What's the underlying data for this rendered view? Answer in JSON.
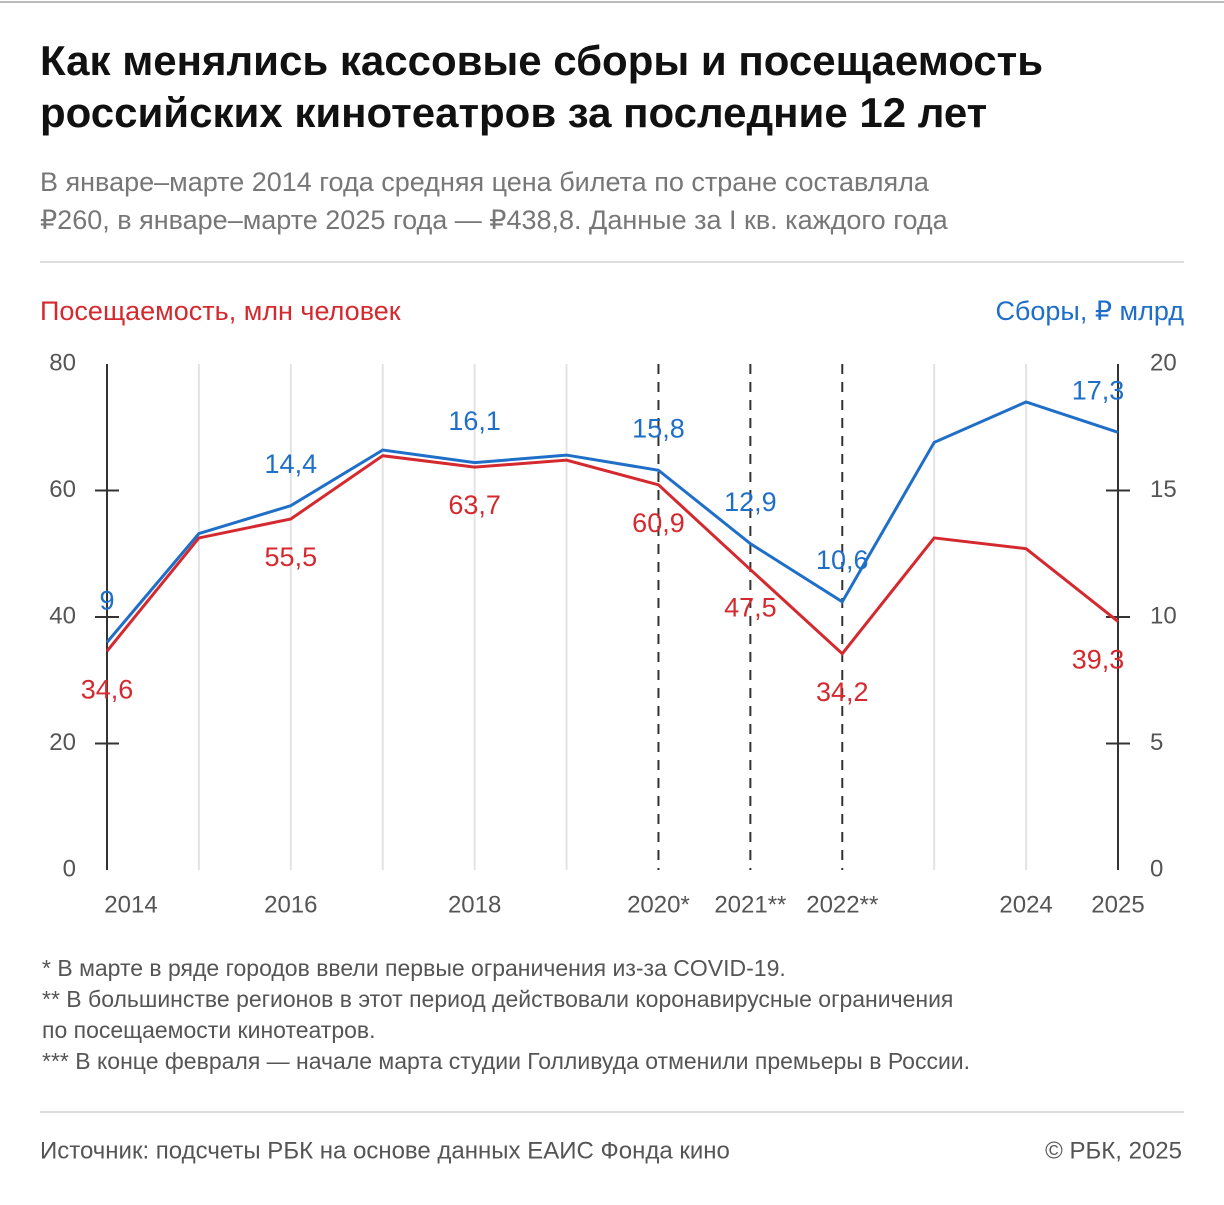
{
  "chart_data": {
    "type": "line",
    "title": [
      "Как менялись кассовые сборы и посещаемость",
      "российских кинотеатров за последние 12 лет"
    ],
    "subtitle": [
      "В январе–марте 2014 года средняя цена билета по стране составляла",
      "₽260, в январе–марте 2025 года — ₽438,8. Данные за I кв. каждого года"
    ],
    "ylabel": "Посещаемость, млн человек",
    "y2label": "Сборы, ₽ млрд",
    "categories": [
      "2014",
      null,
      "2016",
      null,
      "2018",
      null,
      "2020*",
      "2021**",
      "2022**",
      null,
      "2024",
      "2025"
    ],
    "dashed_categories": [
      6,
      7,
      8
    ],
    "ylim": [
      0,
      80
    ],
    "yticks": [
      0,
      20,
      40,
      60,
      80
    ],
    "y2lim": [
      0,
      20
    ],
    "y2ticks": [
      0,
      5,
      10,
      15,
      20
    ],
    "grid": true,
    "series": [
      {
        "name": "Посещаемость, млн человек",
        "color": "#d42a2f",
        "values": [
          34.6,
          52.5,
          55.5,
          65.5,
          63.7,
          64.8,
          60.9,
          47.5,
          34.2,
          52.5,
          50.8,
          39.3
        ],
        "value_labels": [
          "34,6",
          null,
          "55,5",
          null,
          "63,7",
          null,
          "60,9",
          "47,5",
          "34,2",
          null,
          null,
          "39,3"
        ]
      },
      {
        "name": "Сборы, ₽ млрд",
        "color": "#1f6fc8",
        "axis": "y2",
        "values": [
          9,
          13.3,
          14.4,
          16.6,
          16.1,
          16.4,
          15.8,
          12.9,
          10.6,
          16.9,
          18.5,
          17.3
        ],
        "value_labels": [
          "9",
          null,
          "14,4",
          null,
          "16,1",
          null,
          "15,8",
          "12,9",
          "10,6",
          null,
          null,
          "17,3"
        ]
      }
    ],
    "footnotes": [
      "* В марте в ряде городов ввели первые ограничения из-за COVID-19.",
      "** В большинстве регионов в этот период действовали коронавирусные ограничения",
      "по посещаемости кинотеатров.",
      "*** В конце февраля — начале марта студии Голливуда отменили премьеры в России."
    ],
    "source": "Источник: подсчеты РБК на основе данных ЕАИС Фонда кино",
    "copyright": "© РБК, 2025"
  }
}
